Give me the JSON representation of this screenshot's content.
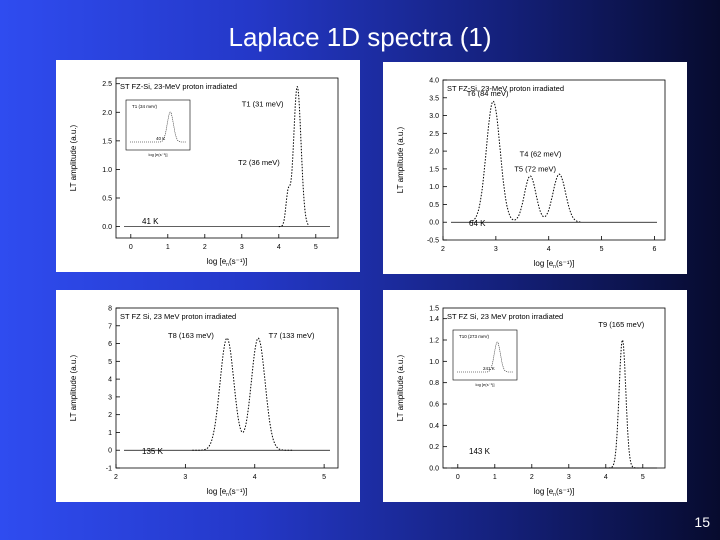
{
  "slide": {
    "title": "Laplace 1D spectra (1)",
    "page_number": "15"
  },
  "chart_data": [
    {
      "type": "line",
      "title": "ST FZ-Si, 23-MeV proton irradiated",
      "xlabel": "log [e",
      "xlabel_sub": "n",
      "xlabel_tail": "(s⁻¹)]",
      "ylabel": "LT amplitude (a.u.)",
      "xlim": [
        -0.4,
        5.6
      ],
      "ylim": [
        -0.2,
        2.6
      ],
      "xticks": [
        0,
        1,
        2,
        3,
        4,
        5
      ],
      "yticks": [
        0.0,
        0.5,
        1.0,
        1.5,
        2.0,
        2.5
      ],
      "ytick_labels": [
        "0.0",
        "0.5",
        "1.0",
        "1.5",
        "2.0",
        "2.5"
      ],
      "temperature_label": "41 K",
      "annotations": [
        {
          "text": "T1 (31 meV)",
          "x": 3.0,
          "y": 2.1
        },
        {
          "text": "T2 (36 meV)",
          "x": 2.9,
          "y": 1.08
        }
      ],
      "series": [
        {
          "peaks": [
            {
              "x": 4.5,
              "y": 2.45,
              "w": 0.1
            },
            {
              "x": 4.25,
              "y": 0.55,
              "w": 0.06
            }
          ],
          "x_range": [
            4.0,
            4.8
          ]
        }
      ],
      "inset": {
        "label": "T1 (34 meV)",
        "label2": "40 K",
        "xlabel": "log [e(s⁻¹)]"
      }
    },
    {
      "type": "line",
      "title": "ST FZ-Si, 23-MeV proton irradiated",
      "xlabel": "log [e",
      "xlabel_sub": "n",
      "xlabel_tail": "(s⁻¹)]",
      "ylabel": "LT amplitude (a.u.)",
      "xlim": [
        2,
        6.2
      ],
      "ylim": [
        -0.5,
        4.0
      ],
      "xticks": [
        2,
        3,
        4,
        5,
        6
      ],
      "yticks": [
        -0.5,
        0.0,
        0.5,
        1.0,
        1.5,
        2.0,
        2.5,
        3.0,
        3.5,
        4.0
      ],
      "ytick_labels": [
        "-0.5",
        "0.0",
        "0.5",
        "1.0",
        "1.5",
        "2.0",
        "2.5",
        "3.0",
        "3.5",
        "4.0"
      ],
      "temperature_label": "64 K",
      "annotations": [
        {
          "text": "T6 (84 meV)",
          "x": 2.45,
          "y": 3.55
        },
        {
          "text": "T4 (62 meV)",
          "x": 3.45,
          "y": 1.85
        },
        {
          "text": "T5 (72 meV)",
          "x": 3.35,
          "y": 1.42
        }
      ],
      "series": [
        {
          "peaks": [
            {
              "x": 2.95,
              "y": 3.4,
              "w": 0.13
            },
            {
              "x": 3.65,
              "y": 1.3,
              "w": 0.11
            },
            {
              "x": 4.2,
              "y": 1.35,
              "w": 0.12
            }
          ],
          "x_range": [
            2.5,
            4.6
          ]
        }
      ]
    },
    {
      "type": "line",
      "title": "ST FZ Si, 23 MeV proton irradiated",
      "xlabel": "log [e",
      "xlabel_sub": "n",
      "xlabel_tail": "(s⁻¹)]",
      "ylabel": "LT amplitude (a.u.)",
      "xlim": [
        2,
        5.2
      ],
      "ylim": [
        -1,
        8
      ],
      "xticks": [
        2,
        3,
        4,
        5
      ],
      "yticks": [
        -1,
        0,
        1,
        2,
        3,
        4,
        5,
        6,
        7,
        8
      ],
      "ytick_labels": [
        "-1",
        "0",
        "1",
        "2",
        "3",
        "4",
        "5",
        "6",
        "7",
        "8"
      ],
      "temperature_label": "135 K",
      "annotations": [
        {
          "text": "T8 (163 meV)",
          "x": 2.75,
          "y": 6.3
        },
        {
          "text": "T7 (133 meV)",
          "x": 4.2,
          "y": 6.3
        }
      ],
      "series": [
        {
          "peaks": [
            {
              "x": 3.6,
              "y": 6.3,
              "w": 0.1
            },
            {
              "x": 4.05,
              "y": 6.3,
              "w": 0.1
            }
          ],
          "x_range": [
            3.1,
            4.55
          ]
        }
      ]
    },
    {
      "type": "line",
      "title": "ST FZ Si, 23 MeV proton irradiated",
      "xlabel": "log [e",
      "xlabel_sub": "n",
      "xlabel_tail": "(s⁻¹)]",
      "ylabel": "LT amplitude (a.u.)",
      "xlim": [
        -0.4,
        5.6
      ],
      "ylim": [
        0.0,
        1.5
      ],
      "xticks": [
        0,
        1,
        2,
        3,
        4,
        5
      ],
      "yticks": [
        0.0,
        0.2,
        0.4,
        0.6,
        0.8,
        1.0,
        1.2,
        1.4
      ],
      "ytick_labels": [
        "0.0",
        "0.2",
        "0.4",
        "0.6",
        "0.8",
        "1.0",
        "1.2",
        "1.4"
      ],
      "extra_ytick": {
        "value": 1.5,
        "label": "1.5"
      },
      "temperature_label": "143 K",
      "annotations": [
        {
          "text": "T9 (165 meV)",
          "x": 3.8,
          "y": 1.32
        }
      ],
      "series": [
        {
          "peaks": [
            {
              "x": 4.45,
              "y": 1.2,
              "w": 0.09
            }
          ],
          "x_range": [
            4.0,
            4.9
          ]
        }
      ],
      "inset": {
        "label": "T10 (273 meV)",
        "label2": "241 K",
        "xlabel": "log [e(s⁻¹)]"
      }
    }
  ]
}
